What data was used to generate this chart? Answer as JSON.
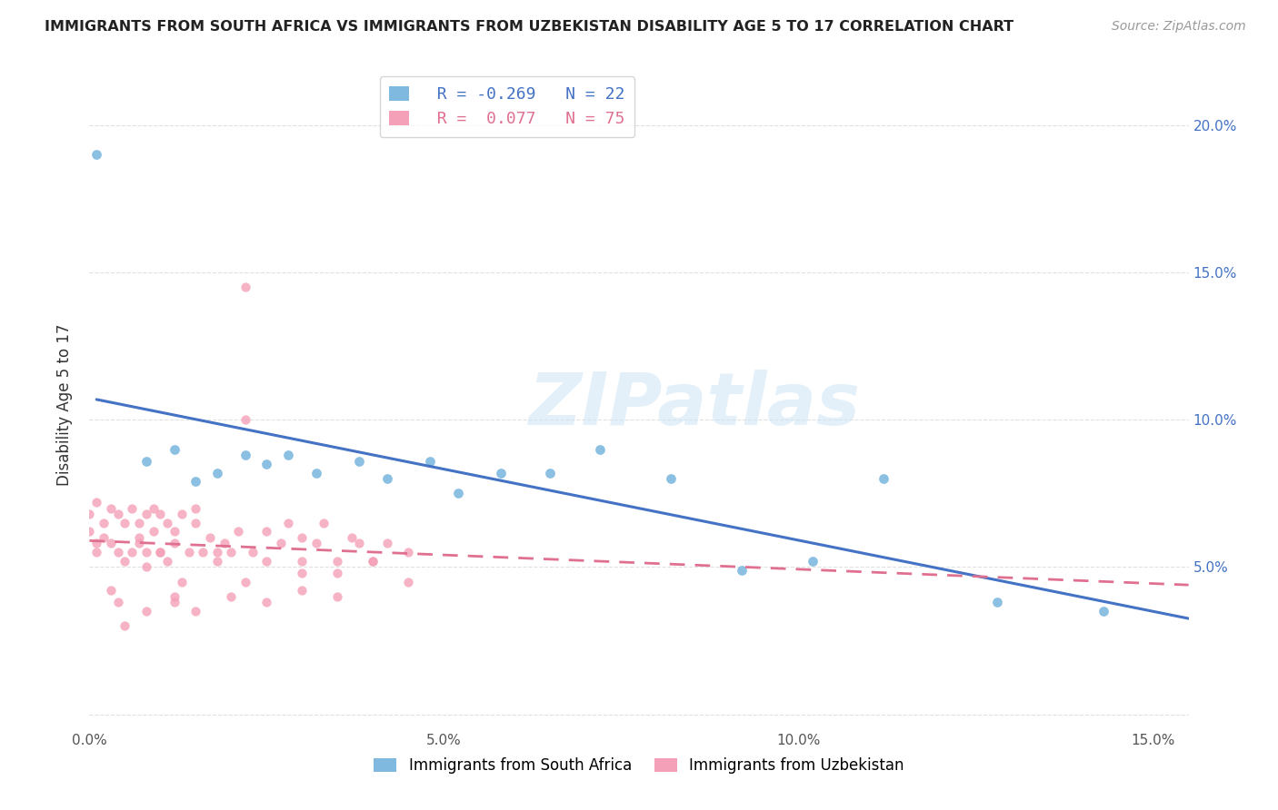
{
  "title": "IMMIGRANTS FROM SOUTH AFRICA VS IMMIGRANTS FROM UZBEKISTAN DISABILITY AGE 5 TO 17 CORRELATION CHART",
  "source": "Source: ZipAtlas.com",
  "ylabel": "Disability Age 5 to 17",
  "xlim": [
    0.0,
    0.155
  ],
  "ylim": [
    -0.005,
    0.215
  ],
  "x_ticks": [
    0.0,
    0.05,
    0.1,
    0.15
  ],
  "x_tick_labels": [
    "0.0%",
    "5.0%",
    "10.0%",
    "15.0%"
  ],
  "y_ticks_right": [
    0.05,
    0.1,
    0.15,
    0.2
  ],
  "y_tick_labels_right": [
    "5.0%",
    "10.0%",
    "15.0%",
    "20.0%"
  ],
  "color_blue": "#7fb9e0",
  "color_pink": "#f4a0b8",
  "watermark_color": "#d0e8f5",
  "sa_x": [
    0.001,
    0.008,
    0.012,
    0.015,
    0.018,
    0.022,
    0.025,
    0.028,
    0.032,
    0.038,
    0.042,
    0.048,
    0.052,
    0.058,
    0.065,
    0.072,
    0.082,
    0.092,
    0.102,
    0.112,
    0.128,
    0.143
  ],
  "sa_y": [
    0.19,
    0.086,
    0.09,
    0.079,
    0.082,
    0.088,
    0.085,
    0.088,
    0.082,
    0.086,
    0.08,
    0.086,
    0.075,
    0.082,
    0.082,
    0.09,
    0.08,
    0.049,
    0.052,
    0.08,
    0.038,
    0.035
  ],
  "uz_x": [
    0.0,
    0.0,
    0.001,
    0.001,
    0.001,
    0.002,
    0.002,
    0.003,
    0.003,
    0.004,
    0.004,
    0.005,
    0.005,
    0.006,
    0.006,
    0.007,
    0.007,
    0.008,
    0.008,
    0.009,
    0.009,
    0.01,
    0.01,
    0.011,
    0.011,
    0.012,
    0.012,
    0.013,
    0.014,
    0.015,
    0.015,
    0.016,
    0.017,
    0.018,
    0.019,
    0.02,
    0.021,
    0.022,
    0.023,
    0.025,
    0.027,
    0.028,
    0.03,
    0.03,
    0.032,
    0.033,
    0.035,
    0.037,
    0.038,
    0.04,
    0.042,
    0.045,
    0.022,
    0.012,
    0.003,
    0.004,
    0.007,
    0.008,
    0.01,
    0.013,
    0.018,
    0.022,
    0.025,
    0.03,
    0.035,
    0.04,
    0.045,
    0.005,
    0.008,
    0.012,
    0.015,
    0.02,
    0.025,
    0.03,
    0.035
  ],
  "uz_y": [
    0.062,
    0.068,
    0.055,
    0.058,
    0.072,
    0.06,
    0.065,
    0.058,
    0.07,
    0.055,
    0.068,
    0.052,
    0.065,
    0.055,
    0.07,
    0.058,
    0.065,
    0.055,
    0.068,
    0.062,
    0.07,
    0.055,
    0.068,
    0.052,
    0.065,
    0.058,
    0.062,
    0.068,
    0.055,
    0.065,
    0.07,
    0.055,
    0.06,
    0.052,
    0.058,
    0.055,
    0.062,
    0.145,
    0.055,
    0.062,
    0.058,
    0.065,
    0.052,
    0.06,
    0.058,
    0.065,
    0.052,
    0.06,
    0.058,
    0.052,
    0.058,
    0.055,
    0.1,
    0.04,
    0.042,
    0.038,
    0.06,
    0.05,
    0.055,
    0.045,
    0.055,
    0.045,
    0.052,
    0.048,
    0.048,
    0.052,
    0.045,
    0.03,
    0.035,
    0.038,
    0.035,
    0.04,
    0.038,
    0.042,
    0.04
  ]
}
